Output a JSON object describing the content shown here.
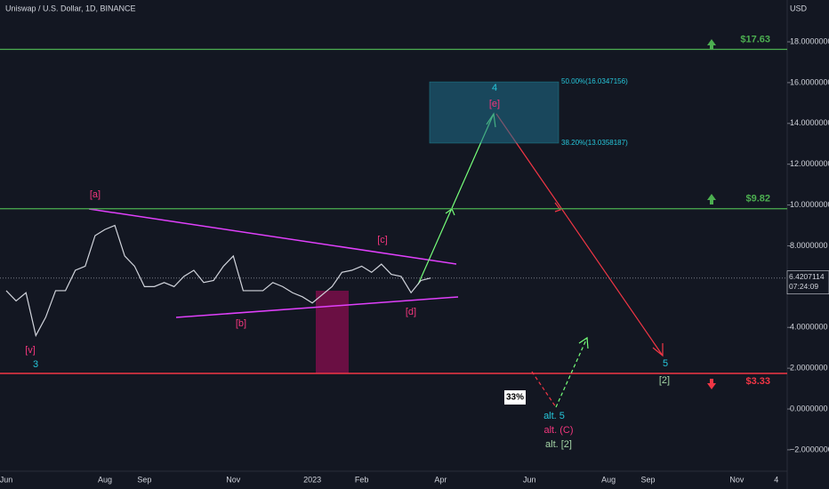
{
  "chart_data": {
    "type": "line",
    "title": "Uniswap / U.S. Dollar, 1D, BINANCE",
    "y_axis_label": "USD",
    "categories": [
      "Jun",
      null,
      null,
      null,
      null,
      null,
      null,
      null,
      null,
      null,
      "Aug",
      null,
      null,
      null,
      "Sep",
      null,
      null,
      null,
      null,
      null,
      null,
      null,
      null,
      "Nov",
      null,
      null,
      null,
      null,
      null,
      null,
      null,
      "2023",
      null,
      null,
      null,
      null,
      "Feb",
      null,
      null,
      null,
      null,
      null,
      null,
      null,
      "Apr",
      null,
      null,
      null,
      null,
      null,
      null,
      null,
      null,
      "Jun",
      null,
      null,
      null,
      null,
      null,
      null,
      null,
      "Aug",
      null,
      null,
      null,
      "Sep",
      null,
      null,
      null,
      null,
      null,
      null,
      null,
      null,
      "Nov",
      null,
      null,
      null,
      "4"
    ],
    "series": [
      {
        "color": "#d1d4dc",
        "values": [
          5.8,
          5.3,
          5.7,
          3.6,
          4.5,
          5.8,
          5.8,
          6.8,
          7.0,
          8.5,
          8.8,
          9.0,
          7.5,
          7.0,
          6.0,
          6.0,
          6.2,
          6.0,
          6.5,
          6.8,
          6.2,
          6.3,
          7.0,
          7.5,
          5.8,
          5.8,
          5.8,
          6.2,
          6.0,
          5.7,
          5.5,
          5.2,
          5.6,
          6.0,
          6.7,
          6.8,
          7.0,
          6.7,
          7.1,
          6.6,
          6.5,
          5.7,
          6.3,
          6.42,
          null,
          null,
          null,
          null,
          null,
          null,
          null,
          null,
          null,
          null,
          null,
          null,
          null,
          null,
          null,
          null,
          null,
          null,
          null,
          null,
          null,
          null,
          null,
          null,
          null,
          null,
          null,
          null,
          null,
          null,
          null,
          null,
          null,
          null,
          null
        ]
      }
    ],
    "ylim": [
      -3.05,
      20.05
    ],
    "yticks": [
      {
        "value": -2,
        "label": "−2.0000000"
      },
      {
        "value": 0,
        "label": "0.0000000"
      },
      {
        "value": 2,
        "label": "2.0000000"
      },
      {
        "value": 4,
        "label": "4.0000000"
      },
      {
        "value": 6,
        "label": "6.0000000"
      },
      {
        "value": 8,
        "label": "8.0000000"
      },
      {
        "value": 10,
        "label": "10.0000000"
      },
      {
        "value": 12,
        "label": "12.0000000"
      },
      {
        "value": 14,
        "label": "14.0000000"
      },
      {
        "value": 16,
        "label": "16.0000000"
      },
      {
        "value": 18,
        "label": "18.0000000"
      }
    ],
    "last_price": {
      "value": 6.4207114,
      "label": "6.4207114"
    },
    "countdown": "07:24:09",
    "levels": [
      {
        "value": 17.63,
        "label": "$17.63",
        "color": "#4caf50"
      },
      {
        "value": 9.82,
        "label": "$9.82",
        "color": "#4caf50"
      }
    ],
    "support_label": "$3.33",
    "fib_levels": [
      {
        "value": 16.0347156,
        "label": "50.00%(16.0347156)"
      },
      {
        "value": 13.0358187,
        "label": "38.20%(13.0358187)"
      }
    ],
    "wave_labels": [
      {
        "text": "[a]",
        "color": "#f2367d"
      },
      {
        "text": "[b]",
        "color": "#f2367d"
      },
      {
        "text": "[c]",
        "color": "#f2367d"
      },
      {
        "text": "[d]",
        "color": "#f2367d"
      },
      {
        "text": "[e]",
        "color": "#f2367d"
      },
      {
        "text": "4",
        "color": "#26c6da"
      },
      {
        "text": "[v]",
        "color": "#f2367d"
      },
      {
        "text": "3",
        "color": "#26c6da"
      },
      {
        "text": "5",
        "color": "#26c6da"
      },
      {
        "text": "[2]",
        "color": "#a5d6a7"
      },
      {
        "text": "alt. 5",
        "color": "#26c6da"
      },
      {
        "text": "alt. (C)",
        "color": "#f2367d"
      },
      {
        "text": "alt. [2]",
        "color": "#a5d6a7"
      }
    ],
    "probability": "33%"
  }
}
